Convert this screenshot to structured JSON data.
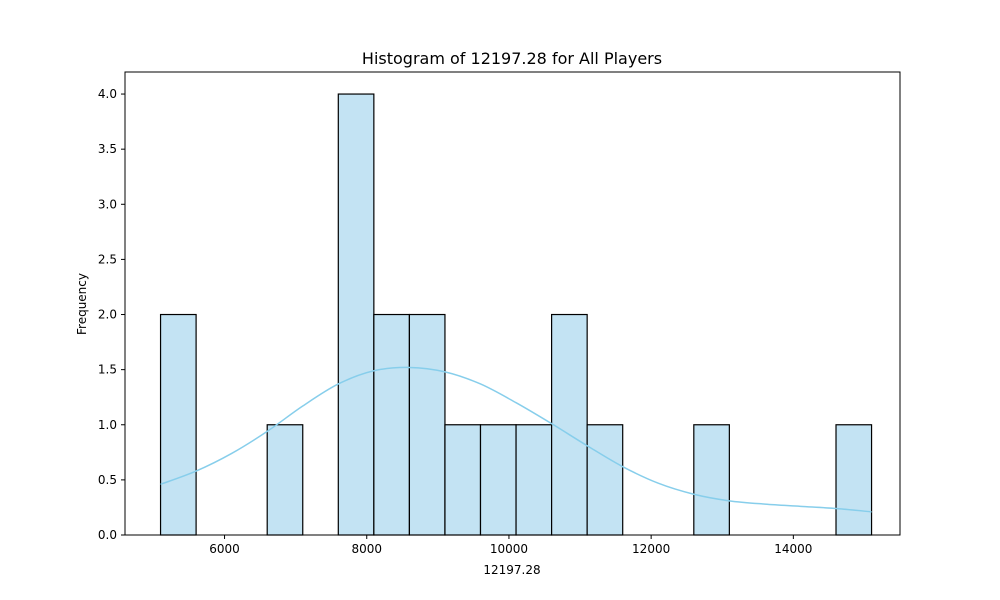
{
  "chart_data": {
    "type": "bar",
    "subtype": "histogram",
    "title": "Histogram of 12197.28 for All Players",
    "xlabel": "12197.28",
    "ylabel": "Frequency",
    "xlim": [
      4600,
      15500
    ],
    "ylim": [
      0,
      4.2
    ],
    "x_ticks": [
      6000,
      8000,
      10000,
      12000,
      14000
    ],
    "y_ticks": [
      0.0,
      0.5,
      1.0,
      1.5,
      2.0,
      2.5,
      3.0,
      3.5,
      4.0
    ],
    "x_tick_labels": [
      "6000",
      "8000",
      "10000",
      "12000",
      "14000"
    ],
    "y_tick_labels": [
      "0.0",
      "0.5",
      "1.0",
      "1.5",
      "2.0",
      "2.5",
      "3.0",
      "3.5",
      "4.0"
    ],
    "bin_edges": [
      5100,
      5600,
      6100,
      6600,
      7100,
      7600,
      8100,
      8600,
      9100,
      9600,
      10100,
      10600,
      11100,
      11600,
      12100,
      12600,
      13100,
      13600,
      14100,
      14600,
      15100
    ],
    "counts": [
      2,
      0,
      0,
      1,
      0,
      4,
      2,
      2,
      1,
      1,
      1,
      2,
      1,
      0,
      0,
      1,
      0,
      0,
      0,
      1
    ],
    "kde": {
      "x": [
        5100,
        5600,
        6100,
        6600,
        7100,
        7600,
        8100,
        8600,
        9100,
        9600,
        10100,
        10600,
        11100,
        11600,
        12100,
        12600,
        13100,
        13600,
        14100,
        14600,
        15100
      ],
      "y": [
        0.46,
        0.58,
        0.74,
        0.94,
        1.17,
        1.37,
        1.49,
        1.52,
        1.48,
        1.37,
        1.2,
        1.01,
        0.81,
        0.62,
        0.47,
        0.37,
        0.31,
        0.28,
        0.26,
        0.24,
        0.21
      ]
    },
    "colors": {
      "bar_fill": "#c3e3f3",
      "bar_edge": "#000000",
      "kde_line": "#87ceeb"
    },
    "grid": false,
    "legend": "none"
  }
}
